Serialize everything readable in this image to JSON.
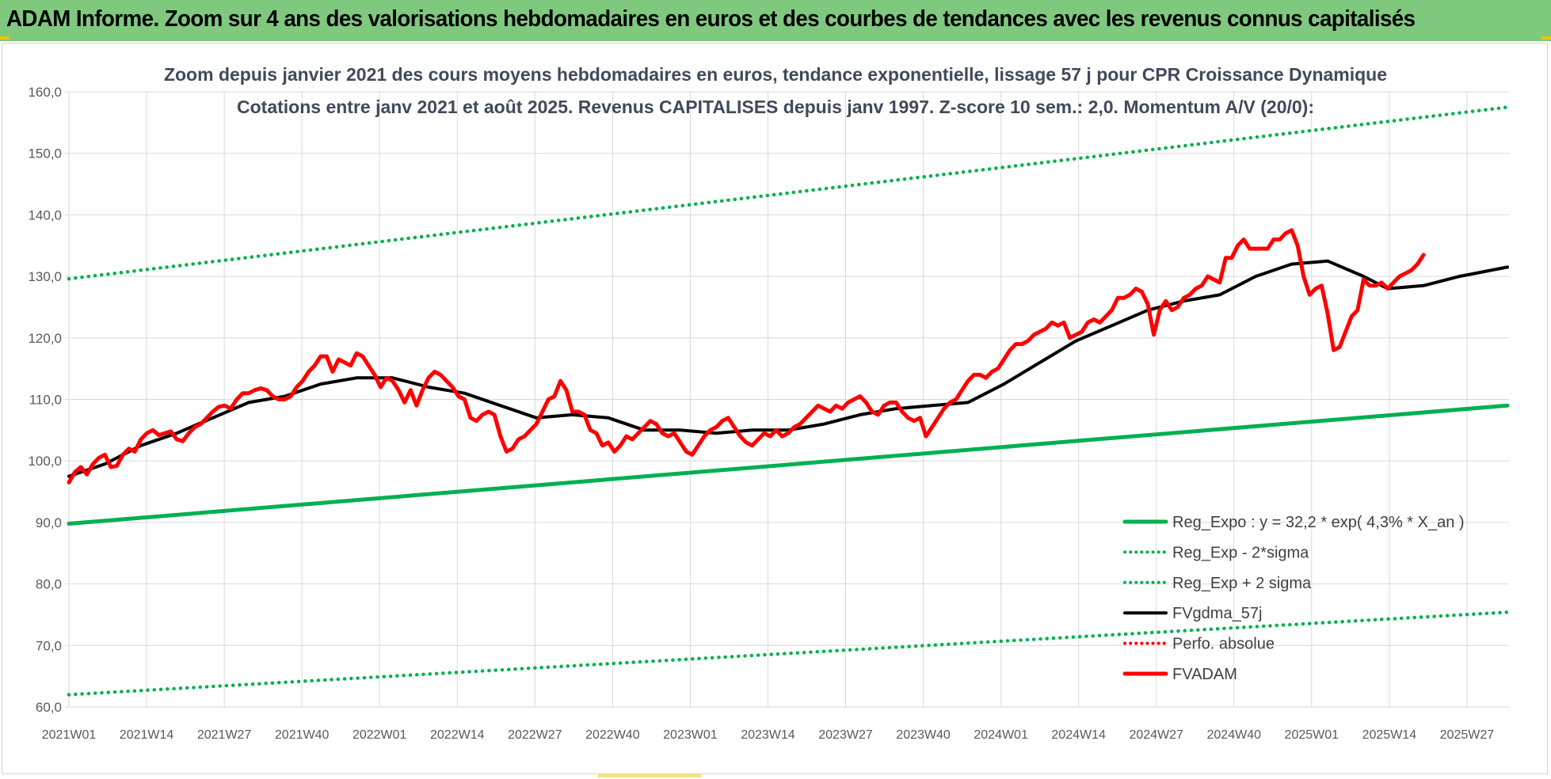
{
  "header": {
    "title": "ADAM Informe. Zoom sur 4 ans des valorisations hebdomadaires en euros et des courbes de tendances avec les revenus connus capitalisés"
  },
  "colors": {
    "banner": "#7fc97f",
    "regression": "#00b050",
    "price": "#ff0000",
    "moving_average": "#000000",
    "grid": "#d9d9d9"
  },
  "chart_data": {
    "type": "line",
    "title": "Zoom depuis janvier 2021 des cours moyens hebdomadaires en euros, tendance exponentielle, lissage 57 j pour CPR Croissance Dynamique",
    "subtitle": "Cotations entre janv 2021 et août 2025. Revenus CAPITALISES depuis janv 1997. Z-score 10 sem.: 2,0. Momentum A/V (20/0):",
    "ylim": [
      60,
      160
    ],
    "y_ticks": [
      "60,0",
      "70,0",
      "80,0",
      "90,0",
      "100,0",
      "110,0",
      "120,0",
      "130,0",
      "140,0",
      "150,0",
      "160,0"
    ],
    "x_ticks": [
      "2021W01",
      "2021W14",
      "2021W27",
      "2021W40",
      "2022W01",
      "2022W14",
      "2022W27",
      "2022W40",
      "2023W01",
      "2023W14",
      "2023W27",
      "2023W40",
      "2024W01",
      "2024W14",
      "2024W27",
      "2024W40",
      "2025W01",
      "2025W14",
      "2025W27"
    ],
    "x_range_weeks": [
      0,
      240
    ],
    "grid": true,
    "legend_position": "bottom-right",
    "series": [
      {
        "name": "Reg_Expo : y = 32,2 * exp( 4,3% *  X_an )",
        "style": "solid-thick",
        "color": "#00b050",
        "points": [
          [
            0,
            89.8
          ],
          [
            240,
            109.0
          ]
        ]
      },
      {
        "name": "Reg_Exp - 2*sigma",
        "style": "dotted",
        "color": "#00b050",
        "points": [
          [
            0,
            62.0
          ],
          [
            240,
            75.4
          ]
        ]
      },
      {
        "name": "Reg_Exp + 2 sigma",
        "style": "dotted",
        "color": "#00b050",
        "points": [
          [
            0,
            129.6
          ],
          [
            240,
            157.5
          ]
        ]
      },
      {
        "name": "FVgdma_57j",
        "style": "solid",
        "color": "#000000",
        "points": [
          [
            0,
            97.5
          ],
          [
            6,
            99.5
          ],
          [
            12,
            102.5
          ],
          [
            18,
            104.5
          ],
          [
            24,
            107.0
          ],
          [
            30,
            109.5
          ],
          [
            36,
            110.5
          ],
          [
            42,
            112.5
          ],
          [
            48,
            113.5
          ],
          [
            54,
            113.5
          ],
          [
            60,
            112.0
          ],
          [
            66,
            111.0
          ],
          [
            72,
            109.0
          ],
          [
            78,
            107.0
          ],
          [
            84,
            107.5
          ],
          [
            90,
            107.0
          ],
          [
            96,
            105.0
          ],
          [
            102,
            105.0
          ],
          [
            108,
            104.5
          ],
          [
            114,
            105.0
          ],
          [
            120,
            105.0
          ],
          [
            126,
            106.0
          ],
          [
            132,
            107.5
          ],
          [
            138,
            108.5
          ],
          [
            144,
            109.0
          ],
          [
            150,
            109.5
          ],
          [
            156,
            112.5
          ],
          [
            162,
            116.0
          ],
          [
            168,
            119.5
          ],
          [
            174,
            122.0
          ],
          [
            180,
            124.5
          ],
          [
            186,
            126.0
          ],
          [
            192,
            127.0
          ],
          [
            198,
            130.0
          ],
          [
            204,
            132.0
          ],
          [
            210,
            132.5
          ],
          [
            216,
            130.0
          ],
          [
            220,
            128.0
          ],
          [
            226,
            128.5
          ],
          [
            232,
            130.0
          ],
          [
            240,
            131.5
          ]
        ]
      },
      {
        "name": "Perfo. absolue",
        "style": "dotted",
        "color": "#ff0000",
        "points": []
      },
      {
        "name": "FVADAM",
        "style": "solid-thick",
        "color": "#ff0000",
        "points": [
          [
            0,
            96.5
          ],
          [
            1,
            98.2
          ],
          [
            2,
            99.0
          ],
          [
            3,
            97.8
          ],
          [
            4,
            99.5
          ],
          [
            5,
            100.5
          ],
          [
            6,
            101.0
          ],
          [
            7,
            99.0
          ],
          [
            8,
            99.2
          ],
          [
            9,
            101.0
          ],
          [
            10,
            102.0
          ],
          [
            11,
            101.5
          ],
          [
            12,
            103.5
          ],
          [
            13,
            104.5
          ],
          [
            14,
            105.0
          ],
          [
            15,
            104.2
          ],
          [
            16,
            104.5
          ],
          [
            17,
            104.8
          ],
          [
            18,
            103.5
          ],
          [
            19,
            103.2
          ],
          [
            20,
            104.5
          ],
          [
            21,
            105.5
          ],
          [
            22,
            106.0
          ],
          [
            23,
            107.0
          ],
          [
            24,
            108.0
          ],
          [
            25,
            108.8
          ],
          [
            26,
            109.0
          ],
          [
            27,
            108.5
          ],
          [
            28,
            110.0
          ],
          [
            29,
            111.0
          ],
          [
            30,
            111.0
          ],
          [
            31,
            111.5
          ],
          [
            32,
            111.8
          ],
          [
            33,
            111.5
          ],
          [
            34,
            110.5
          ],
          [
            35,
            110.0
          ],
          [
            36,
            110.0
          ],
          [
            37,
            110.5
          ],
          [
            38,
            112.0
          ],
          [
            39,
            113.0
          ],
          [
            40,
            114.5
          ],
          [
            41,
            115.5
          ],
          [
            42,
            117.0
          ],
          [
            43,
            117.0
          ],
          [
            44,
            114.5
          ],
          [
            45,
            116.5
          ],
          [
            46,
            116.0
          ],
          [
            47,
            115.5
          ],
          [
            48,
            117.5
          ],
          [
            49,
            117.0
          ],
          [
            50,
            115.5
          ],
          [
            51,
            114.0
          ],
          [
            52,
            112.0
          ],
          [
            53,
            113.5
          ],
          [
            54,
            113.0
          ],
          [
            55,
            111.5
          ],
          [
            56,
            109.5
          ],
          [
            57,
            111.5
          ],
          [
            58,
            109.0
          ],
          [
            59,
            111.5
          ],
          [
            60,
            113.5
          ],
          [
            61,
            114.5
          ],
          [
            62,
            114.0
          ],
          [
            63,
            113.0
          ],
          [
            64,
            112.0
          ],
          [
            65,
            110.5
          ],
          [
            66,
            110.0
          ],
          [
            67,
            107.0
          ],
          [
            68,
            106.5
          ],
          [
            69,
            107.5
          ],
          [
            70,
            108.0
          ],
          [
            71,
            107.5
          ],
          [
            72,
            104.0
          ],
          [
            73,
            101.5
          ],
          [
            74,
            102.0
          ],
          [
            75,
            103.5
          ],
          [
            76,
            104.0
          ],
          [
            77,
            105.0
          ],
          [
            78,
            106.0
          ],
          [
            79,
            108.0
          ],
          [
            80,
            110.0
          ],
          [
            81,
            110.5
          ],
          [
            82,
            113.0
          ],
          [
            83,
            111.5
          ],
          [
            84,
            108.0
          ],
          [
            85,
            108.0
          ],
          [
            86,
            107.5
          ],
          [
            87,
            105.0
          ],
          [
            88,
            104.5
          ],
          [
            89,
            102.5
          ],
          [
            90,
            103.0
          ],
          [
            91,
            101.5
          ],
          [
            92,
            102.5
          ],
          [
            93,
            104.0
          ],
          [
            94,
            103.5
          ],
          [
            95,
            104.5
          ],
          [
            96,
            105.5
          ],
          [
            97,
            106.5
          ],
          [
            98,
            106.0
          ],
          [
            99,
            104.5
          ],
          [
            100,
            104.0
          ],
          [
            101,
            104.5
          ],
          [
            102,
            103.0
          ],
          [
            103,
            101.5
          ],
          [
            104,
            101.0
          ],
          [
            105,
            102.5
          ],
          [
            106,
            104.0
          ],
          [
            107,
            105.0
          ],
          [
            108,
            105.5
          ],
          [
            109,
            106.5
          ],
          [
            110,
            107.0
          ],
          [
            111,
            105.5
          ],
          [
            112,
            104.0
          ],
          [
            113,
            103.0
          ],
          [
            114,
            102.5
          ],
          [
            115,
            103.5
          ],
          [
            116,
            104.5
          ],
          [
            117,
            104.0
          ],
          [
            118,
            105.0
          ],
          [
            119,
            104.0
          ],
          [
            120,
            104.5
          ],
          [
            121,
            105.5
          ],
          [
            122,
            106.0
          ],
          [
            123,
            107.0
          ],
          [
            124,
            108.0
          ],
          [
            125,
            109.0
          ],
          [
            126,
            108.5
          ],
          [
            127,
            108.0
          ],
          [
            128,
            109.0
          ],
          [
            129,
            108.5
          ],
          [
            130,
            109.5
          ],
          [
            131,
            110.0
          ],
          [
            132,
            110.5
          ],
          [
            133,
            109.5
          ],
          [
            134,
            108.0
          ],
          [
            135,
            107.5
          ],
          [
            136,
            109.0
          ],
          [
            137,
            109.5
          ],
          [
            138,
            109.5
          ],
          [
            139,
            108.0
          ],
          [
            140,
            107.0
          ],
          [
            141,
            106.5
          ],
          [
            142,
            107.0
          ],
          [
            143,
            104.0
          ],
          [
            144,
            105.5
          ],
          [
            145,
            107.0
          ],
          [
            146,
            108.5
          ],
          [
            147,
            109.5
          ],
          [
            148,
            110.0
          ],
          [
            149,
            111.5
          ],
          [
            150,
            113.0
          ],
          [
            151,
            114.0
          ],
          [
            152,
            114.0
          ],
          [
            153,
            113.5
          ],
          [
            154,
            114.5
          ],
          [
            155,
            115.0
          ],
          [
            156,
            116.5
          ],
          [
            157,
            118.0
          ],
          [
            158,
            119.0
          ],
          [
            159,
            119.0
          ],
          [
            160,
            119.5
          ],
          [
            161,
            120.5
          ],
          [
            162,
            121.0
          ],
          [
            163,
            121.5
          ],
          [
            164,
            122.5
          ],
          [
            165,
            122.0
          ],
          [
            166,
            122.5
          ],
          [
            167,
            120.0
          ],
          [
            168,
            120.5
          ],
          [
            169,
            121.0
          ],
          [
            170,
            122.5
          ],
          [
            171,
            123.0
          ],
          [
            172,
            122.5
          ],
          [
            173,
            123.5
          ],
          [
            174,
            124.5
          ],
          [
            175,
            126.5
          ],
          [
            176,
            126.5
          ],
          [
            177,
            127.0
          ],
          [
            178,
            128.0
          ],
          [
            179,
            127.5
          ],
          [
            180,
            125.5
          ],
          [
            181,
            120.5
          ],
          [
            182,
            124.5
          ],
          [
            183,
            126.0
          ],
          [
            184,
            124.5
          ],
          [
            185,
            125.0
          ],
          [
            186,
            126.5
          ],
          [
            187,
            127.0
          ],
          [
            188,
            128.0
          ],
          [
            189,
            128.5
          ],
          [
            190,
            130.0
          ],
          [
            191,
            129.5
          ],
          [
            192,
            129.0
          ],
          [
            193,
            133.0
          ],
          [
            194,
            133.0
          ],
          [
            195,
            135.0
          ],
          [
            196,
            136.0
          ],
          [
            197,
            134.5
          ],
          [
            198,
            134.5
          ],
          [
            199,
            134.5
          ],
          [
            200,
            134.5
          ],
          [
            201,
            136.0
          ],
          [
            202,
            136.0
          ],
          [
            203,
            137.0
          ],
          [
            204,
            137.5
          ],
          [
            205,
            135.0
          ],
          [
            206,
            130.0
          ],
          [
            207,
            127.0
          ],
          [
            208,
            128.0
          ],
          [
            209,
            128.5
          ],
          [
            210,
            124.0
          ],
          [
            211,
            118.0
          ],
          [
            212,
            118.5
          ],
          [
            213,
            121.0
          ],
          [
            214,
            123.5
          ],
          [
            215,
            124.5
          ],
          [
            216,
            129.5
          ],
          [
            217,
            128.5
          ],
          [
            218,
            128.5
          ],
          [
            219,
            129.0
          ],
          [
            220,
            128.0
          ],
          [
            221,
            129.0
          ],
          [
            222,
            130.0
          ],
          [
            223,
            130.5
          ],
          [
            224,
            131.0
          ],
          [
            225,
            132.0
          ],
          [
            226,
            133.5
          ]
        ]
      }
    ]
  }
}
